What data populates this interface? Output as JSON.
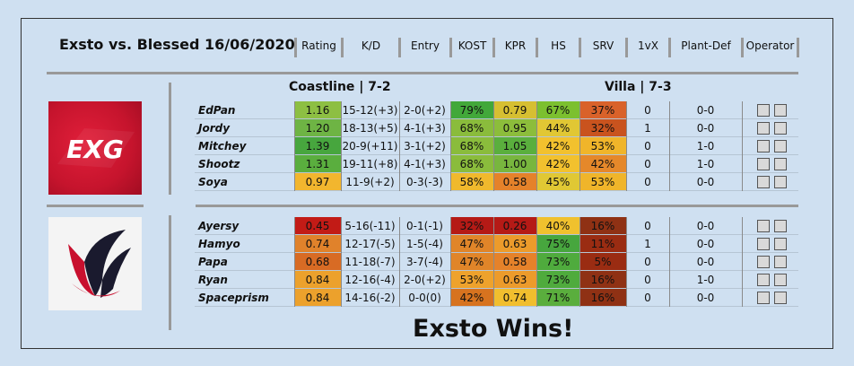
{
  "title": "Exsto vs. Blessed 16/06/2020",
  "headers": [
    "Rating",
    "K/D",
    "Entry",
    "KOST",
    "KPR",
    "HS",
    "SRV",
    "1vX",
    "Plant-Def",
    "Operator"
  ],
  "maps": {
    "map1": "Coastline | 7-2",
    "map2": "Villa | 7-3"
  },
  "logos": {
    "team1": "EXG"
  },
  "team1": [
    {
      "name": "EdPan",
      "rating": "1.16",
      "kd": "15-12(+3)",
      "entry": "2-0(+2)",
      "kost": "79%",
      "kpr": "0.79",
      "hs": "67%",
      "srv": "37%",
      "onevx": "0",
      "plantdef": "0-0",
      "c": {
        "rating": "#8dbf43",
        "kost": "#42a83a",
        "kpr": "#d6bf32",
        "hs": "#7cc02f",
        "srv": "#d9622a"
      }
    },
    {
      "name": "Jordy",
      "rating": "1.20",
      "kd": "18-13(+5)",
      "entry": "4-1(+3)",
      "kost": "68%",
      "kpr": "0.95",
      "hs": "44%",
      "srv": "32%",
      "onevx": "1",
      "plantdef": "0-0",
      "c": {
        "rating": "#6eb444",
        "kost": "#8abc3c",
        "kpr": "#8cbd3b",
        "hs": "#e1c734",
        "srv": "#c9531e"
      }
    },
    {
      "name": "Mitchey",
      "rating": "1.39",
      "kd": "20-9(+11)",
      "entry": "3-1(+2)",
      "kost": "68%",
      "kpr": "1.05",
      "hs": "42%",
      "srv": "53%",
      "onevx": "0",
      "plantdef": "1-0",
      "c": {
        "rating": "#47a63e",
        "kost": "#8abc3c",
        "kpr": "#5aaf3d",
        "hs": "#f2c12e",
        "srv": "#f0b52a"
      }
    },
    {
      "name": "Shootz",
      "rating": "1.31",
      "kd": "19-11(+8)",
      "entry": "4-1(+3)",
      "kost": "68%",
      "kpr": "1.00",
      "hs": "42%",
      "srv": "42%",
      "onevx": "0",
      "plantdef": "1-0",
      "c": {
        "rating": "#5aae3e",
        "kost": "#8abc3c",
        "kpr": "#78b63e",
        "hs": "#f2c12e",
        "srv": "#e5882a"
      }
    },
    {
      "name": "Soya",
      "rating": "0.97",
      "kd": "11-9(+2)",
      "entry": "0-3(-3)",
      "kost": "58%",
      "kpr": "0.58",
      "hs": "45%",
      "srv": "53%",
      "onevx": "0",
      "plantdef": "0-0",
      "c": {
        "rating": "#f2b62e",
        "kost": "#f0b92d",
        "kpr": "#e5822a",
        "hs": "#e0c834",
        "srv": "#f0b52a"
      }
    }
  ],
  "team2": [
    {
      "name": "Ayersy",
      "rating": "0.45",
      "kd": "5-16(-11)",
      "entry": "0-1(-1)",
      "kost": "32%",
      "kpr": "0.26",
      "hs": "40%",
      "srv": "16%",
      "onevx": "0",
      "plantdef": "0-0",
      "c": {
        "rating": "#c21b16",
        "kost": "#b51a16",
        "kpr": "#b51a16",
        "hs": "#f0c12e",
        "srv": "#8f3114"
      }
    },
    {
      "name": "Hamyo",
      "rating": "0.74",
      "kd": "12-17(-5)",
      "entry": "1-5(-4)",
      "kost": "47%",
      "kpr": "0.63",
      "hs": "75%",
      "srv": "11%",
      "onevx": "1",
      "plantdef": "0-0",
      "c": {
        "rating": "#e0822b",
        "kost": "#e08529",
        "kpr": "#ec9b2b",
        "hs": "#47a63e",
        "srv": "#9a2c12"
      }
    },
    {
      "name": "Papa",
      "rating": "0.68",
      "kd": "11-18(-7)",
      "entry": "3-7(-4)",
      "kost": "47%",
      "kpr": "0.58",
      "hs": "73%",
      "srv": "5%",
      "onevx": "0",
      "plantdef": "0-0",
      "c": {
        "rating": "#d86b24",
        "kost": "#e08529",
        "kpr": "#e5822a",
        "hs": "#4fab3d",
        "srv": "#9a2c12"
      }
    },
    {
      "name": "Ryan",
      "rating": "0.84",
      "kd": "12-16(-4)",
      "entry": "2-0(+2)",
      "kost": "53%",
      "kpr": "0.63",
      "hs": "73%",
      "srv": "16%",
      "onevx": "0",
      "plantdef": "1-0",
      "c": {
        "rating": "#eca12c",
        "kost": "#eea22c",
        "kpr": "#ec9b2b",
        "hs": "#4fab3d",
        "srv": "#8f3114"
      }
    },
    {
      "name": "Spaceprism",
      "rating": "0.84",
      "kd": "14-16(-2)",
      "entry": "0-0(0)",
      "kost": "42%",
      "kpr": "0.74",
      "hs": "71%",
      "srv": "16%",
      "onevx": "0",
      "plantdef": "0-0",
      "c": {
        "rating": "#eca12c",
        "kost": "#d7731f",
        "kpr": "#f1be2e",
        "hs": "#5aae3d",
        "srv": "#8f3114"
      }
    }
  ],
  "result": "Exsto Wins!"
}
